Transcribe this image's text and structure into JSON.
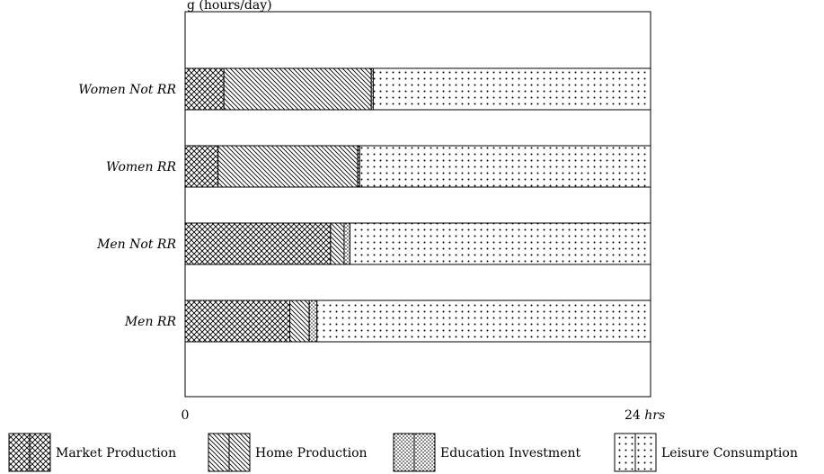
{
  "chart_data": {
    "type": "bar",
    "orientation": "horizontal",
    "stacked": true,
    "title": "g (hours/day)",
    "categories": [
      "Women Not RR",
      "Women RR",
      "Men Not RR",
      "Men RR"
    ],
    "xlim": [
      0,
      24
    ],
    "x_ticks": [
      "0",
      "24"
    ],
    "x_unit": "hrs",
    "series": [
      {
        "name": "Market Production",
        "pattern": "crosshatch",
        "values": [
          2.0,
          1.7,
          7.5,
          5.4
        ]
      },
      {
        "name": "Home Production",
        "pattern": "diagonal",
        "values": [
          7.6,
          7.2,
          0.7,
          1.0
        ]
      },
      {
        "name": "Education Investment",
        "pattern": "dense-dots",
        "values": [
          0.1,
          0.1,
          0.3,
          0.4
        ]
      },
      {
        "name": "Leisure Consumption",
        "pattern": "sparse-dots",
        "values": [
          14.3,
          15.0,
          15.5,
          17.2
        ]
      }
    ],
    "legend_position": "bottom"
  }
}
